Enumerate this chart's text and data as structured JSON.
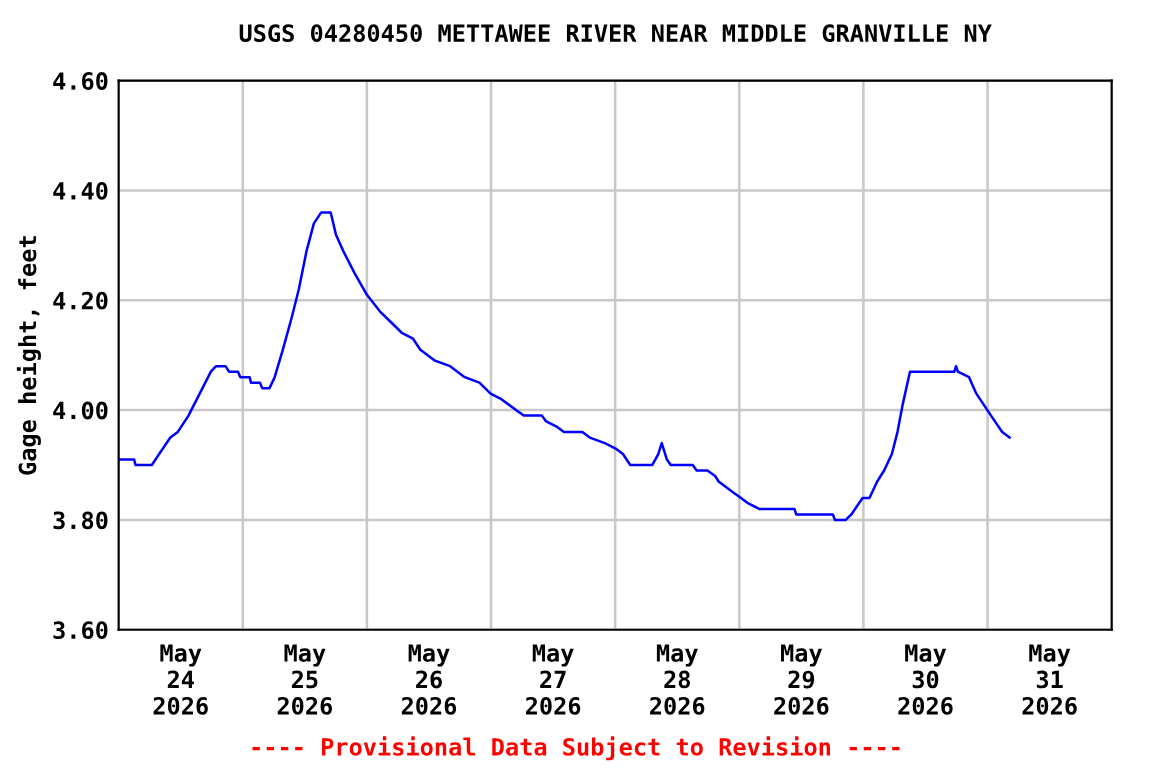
{
  "chart_data": {
    "type": "line",
    "title": "USGS 04280450 METTAWEE RIVER NEAR MIDDLE GRANVILLE NY",
    "ylabel": "Gage height, feet",
    "annotations": [
      "---- Provisional Data Subject to Revision ----"
    ],
    "series": [
      {
        "color": "#0000ff",
        "x": [
          "2026-05-24T00:00",
          "2026-05-24T03:00",
          "2026-05-24T03:15",
          "2026-05-24T06:25",
          "2026-05-24T07:50",
          "2026-05-24T10:00",
          "2026-05-24T11:25",
          "2026-05-24T13:30",
          "2026-05-24T15:40",
          "2026-05-24T17:50",
          "2026-05-24T18:50",
          "2026-05-24T20:40",
          "2026-05-24T21:20",
          "2026-05-24T23:05",
          "2026-05-24T23:30",
          "2026-05-25T01:20",
          "2026-05-25T01:35",
          "2026-05-25T03:20",
          "2026-05-25T03:45",
          "2026-05-25T05:10",
          "2026-05-25T06:10",
          "2026-05-25T07:45",
          "2026-05-25T09:30",
          "2026-05-25T10:50",
          "2026-05-25T12:20",
          "2026-05-25T13:45",
          "2026-05-25T15:10",
          "2026-05-25T17:00",
          "2026-05-25T18:00",
          "2026-05-25T19:25",
          "2026-05-25T21:35",
          "2026-05-26T00:00",
          "2026-05-26T02:30",
          "2026-05-26T04:40",
          "2026-05-26T06:50",
          "2026-05-26T08:55",
          "2026-05-26T10:20",
          "2026-05-26T13:10",
          "2026-05-26T16:05",
          "2026-05-26T18:55",
          "2026-05-26T21:45",
          "2026-05-26T23:55",
          "2026-05-27T02:00",
          "2026-05-27T04:50",
          "2026-05-27T06:20",
          "2026-05-27T09:50",
          "2026-05-27T10:35",
          "2026-05-27T12:40",
          "2026-05-27T14:05",
          "2026-05-27T17:40",
          "2026-05-27T19:05",
          "2026-05-27T22:00",
          "2026-05-28T00:05",
          "2026-05-28T01:30",
          "2026-05-28T02:55",
          "2026-05-28T07:10",
          "2026-05-28T08:20",
          "2026-05-28T09:00",
          "2026-05-28T10:00",
          "2026-05-28T10:45",
          "2026-05-28T15:00",
          "2026-05-28T15:45",
          "2026-05-28T17:50",
          "2026-05-28T19:20",
          "2026-05-28T20:00",
          "2026-05-28T21:25",
          "2026-05-28T22:50",
          "2026-05-29T00:20",
          "2026-05-29T01:45",
          "2026-05-29T03:50",
          "2026-05-29T10:40",
          "2026-05-29T11:00",
          "2026-05-29T18:05",
          "2026-05-29T18:30",
          "2026-05-29T20:35",
          "2026-05-29T21:40",
          "2026-05-29T23:50",
          "2026-05-30T01:10",
          "2026-05-30T02:40",
          "2026-05-30T04:00",
          "2026-05-30T05:30",
          "2026-05-30T06:35",
          "2026-05-30T07:35",
          "2026-05-30T09:00",
          "2026-05-30T17:35",
          "2026-05-30T17:55",
          "2026-05-30T18:15",
          "2026-05-30T20:25",
          "2026-05-30T21:50",
          "2026-05-30T23:15",
          "2026-05-31T00:40",
          "2026-05-31T02:50",
          "2026-05-31T04:15"
        ],
        "values": [
          3.91,
          3.91,
          3.9,
          3.9,
          3.92,
          3.95,
          3.96,
          3.99,
          4.03,
          4.07,
          4.08,
          4.08,
          4.07,
          4.07,
          4.06,
          4.06,
          4.05,
          4.05,
          4.04,
          4.04,
          4.06,
          4.11,
          4.17,
          4.22,
          4.29,
          4.34,
          4.36,
          4.36,
          4.32,
          4.29,
          4.25,
          4.21,
          4.18,
          4.16,
          4.14,
          4.13,
          4.11,
          4.09,
          4.08,
          4.06,
          4.05,
          4.03,
          4.02,
          4.0,
          3.99,
          3.99,
          3.98,
          3.97,
          3.96,
          3.96,
          3.95,
          3.94,
          3.93,
          3.92,
          3.9,
          3.9,
          3.92,
          3.94,
          3.91,
          3.9,
          3.9,
          3.89,
          3.89,
          3.88,
          3.87,
          3.86,
          3.85,
          3.84,
          3.83,
          3.82,
          3.82,
          3.81,
          3.81,
          3.8,
          3.8,
          3.81,
          3.84,
          3.84,
          3.87,
          3.89,
          3.92,
          3.96,
          4.01,
          4.07,
          4.07,
          4.08,
          4.07,
          4.06,
          4.03,
          4.01,
          3.99,
          3.96,
          3.95
        ]
      }
    ],
    "xlim": [
      "2026-05-24T00:00",
      "2026-06-01T00:00"
    ],
    "xticks": [
      {
        "value": "2026-05-25T00:00",
        "label": null
      },
      {
        "value": "2026-05-26T00:00",
        "label": null
      },
      {
        "value": "2026-05-27T00:00",
        "label": null
      },
      {
        "value": "2026-05-28T00:00",
        "label": null
      },
      {
        "value": "2026-05-29T00:00",
        "label": null
      },
      {
        "value": "2026-05-30T00:00",
        "label": null
      },
      {
        "value": "2026-05-31T00:00",
        "label": null
      },
      {
        "value": "2026-05-24T12:00",
        "label": "May\n24\n2026"
      },
      {
        "value": "2026-05-25T12:00",
        "label": "May\n25\n2026"
      },
      {
        "value": "2026-05-26T12:00",
        "label": "May\n26\n2026"
      },
      {
        "value": "2026-05-27T12:00",
        "label": "May\n27\n2026"
      },
      {
        "value": "2026-05-28T12:00",
        "label": "May\n28\n2026"
      },
      {
        "value": "2026-05-29T12:00",
        "label": "May\n29\n2026"
      },
      {
        "value": "2026-05-30T12:00",
        "label": "May\n30\n2026"
      },
      {
        "value": "2026-05-31T12:00",
        "label": "May\n31\n2026"
      }
    ],
    "ylim": [
      3.6,
      4.6
    ],
    "yticks": [
      {
        "value": 3.6,
        "label": "3.60"
      },
      {
        "value": 3.8,
        "label": "3.80"
      },
      {
        "value": 4.0,
        "label": "4.00"
      },
      {
        "value": 4.2,
        "label": "4.20"
      },
      {
        "value": 4.4,
        "label": "4.40"
      },
      {
        "value": 4.6,
        "label": "4.60"
      }
    ],
    "grid": true,
    "line_style": "solid",
    "marker": "none",
    "legend": false
  }
}
